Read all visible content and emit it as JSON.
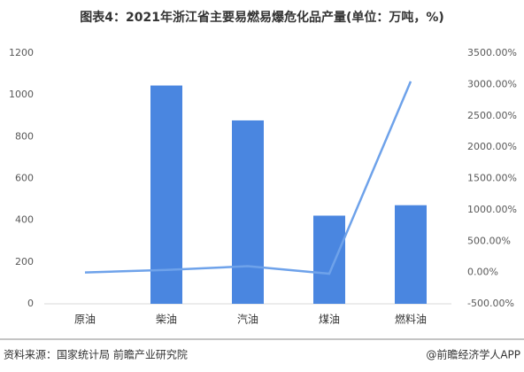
{
  "chart_data": {
    "type": "bar+line",
    "title": "图表4：2021年浙江省主要易燃易爆危化品产量(单位：万吨，%)",
    "categories": [
      "原油",
      "柴油",
      "汽油",
      "煤油",
      "燃料油"
    ],
    "series": [
      {
        "type": "bar",
        "color": "#4a86e0",
        "values": [
          0,
          1045,
          878,
          422,
          472
        ]
      },
      {
        "type": "line",
        "axis": "y2",
        "color": "#6ea2ea",
        "values": [
          0,
          40,
          100,
          -20,
          3050
        ]
      }
    ],
    "ylim": [
      0,
      1200
    ],
    "yticks": [
      0,
      200,
      400,
      600,
      800,
      1000,
      1200
    ],
    "y2lim": [
      -500,
      3500
    ],
    "y2ticks": [
      {
        "value": -500,
        "label": "-500.00%"
      },
      {
        "value": 0,
        "label": "0.00%"
      },
      {
        "value": 500,
        "label": "500.00%"
      },
      {
        "value": 1000,
        "label": "1000.00%"
      },
      {
        "value": 1500,
        "label": "1500.00%"
      },
      {
        "value": 2000,
        "label": "2000.00%"
      },
      {
        "value": 2500,
        "label": "2500.00%"
      },
      {
        "value": 3000,
        "label": "3000.00%"
      },
      {
        "value": 3500,
        "label": "3500.00%"
      }
    ],
    "source": "资料来源：国家统计局 前瞻产业研究院",
    "brand": "@前瞻经济学人APP"
  }
}
